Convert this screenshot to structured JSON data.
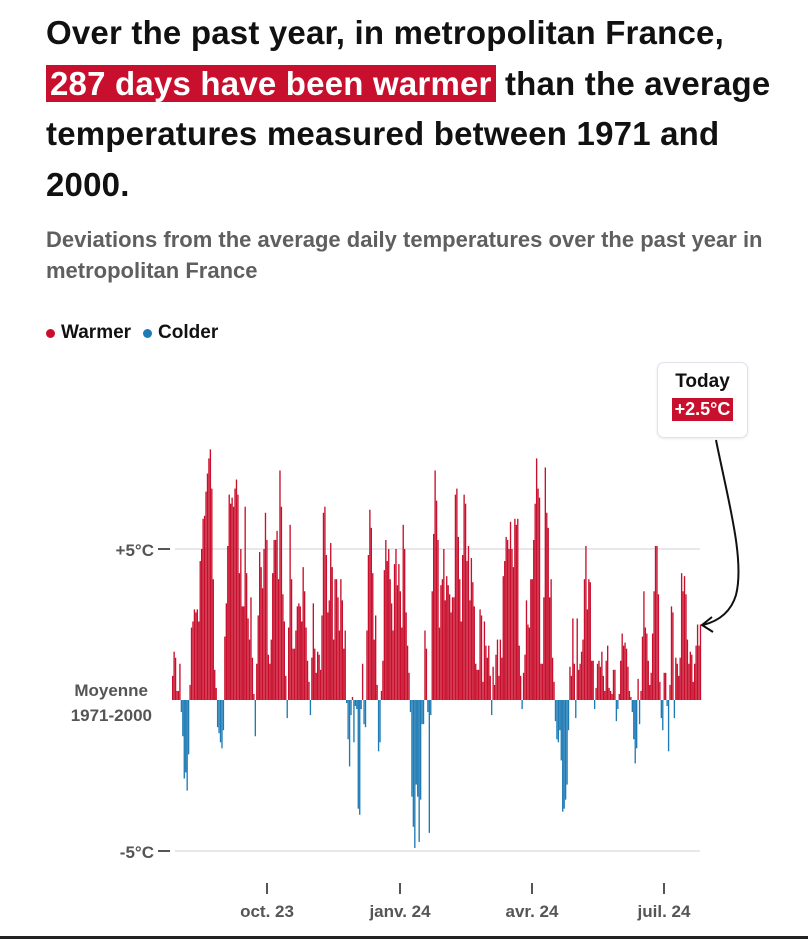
{
  "title": {
    "before": "Over the past year, in metropolitan France, ",
    "highlight": "287 days have been warmer",
    "after": " than the average temperatures measured between 1971 and 2000."
  },
  "subtitle": "Deviations from the average daily temperatures over the past year in metropolitan France",
  "legend": [
    {
      "label": "Warmer",
      "color": "#c8102e"
    },
    {
      "label": "Colder",
      "color": "#1f7bb5"
    }
  ],
  "callout": {
    "label": "Today",
    "value": "+2.5°C"
  },
  "chart_data": {
    "type": "bar",
    "title": "",
    "xlabel": "",
    "ylabel": "",
    "ylim": [
      -5.5,
      8.5
    ],
    "y_ticks": [
      {
        "value": 5,
        "label": "+5°C"
      },
      {
        "value": 0,
        "label_line1": "Moyenne",
        "label_line2": "1971-2000"
      },
      {
        "value": -5,
        "label": "-5°C"
      }
    ],
    "x_ticks": [
      "oct. 23",
      "janv. 24",
      "avr. 24",
      "juil. 24"
    ],
    "grid": true,
    "positive_color": "#c8102e",
    "negative_color": "#1f7bb5",
    "unit": "°C",
    "values": [
      0.8,
      1.6,
      1.4,
      0.3,
      0.3,
      1.2,
      -0.4,
      -1.2,
      -2.6,
      -2.4,
      -3.0,
      -1.8,
      0.5,
      2.4,
      2.6,
      3.0,
      2.9,
      3.0,
      2.6,
      4.6,
      5.0,
      6.0,
      6.1,
      6.9,
      7.5,
      8.0,
      8.3,
      7.0,
      4.0,
      1.0,
      0.4,
      -0.9,
      -1.1,
      -1.4,
      -1.6,
      -1.0,
      2.1,
      3.2,
      5.1,
      6.8,
      6.5,
      6.7,
      6.4,
      7.0,
      7.3,
      6.8,
      4.2,
      5.0,
      3.1,
      3.1,
      6.4,
      4.2,
      2.7,
      2.0,
      3.4,
      1.4,
      0.2,
      -1.2,
      1.2,
      2.8,
      4.9,
      4.4,
      3.7,
      5.0,
      6.2,
      5.3,
      1.5,
      1.2,
      2.0,
      4.2,
      5.3,
      5.3,
      5.6,
      4.0,
      7.6,
      6.4,
      3.5,
      2.6,
      0.8,
      -0.6,
      2.4,
      5.8,
      4.0,
      1.7,
      1.7,
      2.3,
      3.1,
      3.2,
      3.1,
      2.6,
      4.4,
      3.6,
      2.4,
      1.3,
      0.6,
      -0.5,
      1.4,
      3.2,
      1.7,
      0.9,
      1.6,
      1.5,
      1.0,
      2.8,
      6.2,
      6.4,
      4.8,
      2.9,
      3.3,
      5.2,
      4.4,
      2.0,
      4.0,
      4.0,
      3.4,
      2.3,
      4.0,
      3.3,
      1.7,
      2.3,
      -0.1,
      -1.3,
      -2.2,
      -0.5,
      0.1,
      -1.4,
      -0.2,
      -0.3,
      -3.6,
      -3.8,
      -0.3,
      1.2,
      -0.8,
      -0.9,
      2.3,
      4.8,
      6.3,
      5.7,
      4.2,
      2.0,
      2.8,
      0.5,
      -1.7,
      -1.4,
      0.3,
      1.3,
      4.3,
      5.3,
      4.6,
      5.0,
      4.0,
      3.2,
      2.3,
      4.5,
      5.0,
      3.8,
      4.5,
      3.6,
      2.4,
      5.8,
      5.0,
      2.9,
      1.8,
      0.9,
      -0.4,
      -3.2,
      -4.2,
      -4.9,
      -2.8,
      -3.2,
      -4.7,
      -3.3,
      -0.8,
      -0.8,
      2.3,
      1.7,
      -0.4,
      -4.4,
      -0.5,
      3.6,
      5.5,
      7.6,
      6.6,
      5.3,
      2.4,
      3.8,
      4.0,
      5.0,
      3.3,
      4.1,
      3.8,
      3.5,
      2.9,
      3.4,
      3.4,
      6.8,
      7.0,
      5.4,
      4.0,
      2.6,
      4.8,
      6.8,
      6.5,
      4.6,
      5.1,
      3.3,
      4.7,
      3.9,
      3.1,
      1.2,
      1.0,
      1.0,
      3.0,
      2.8,
      0.6,
      2.6,
      1.8,
      1.4,
      1.8,
      0.8,
      -0.5,
      1.1,
      0.5,
      1.5,
      2.0,
      0.8,
      2.0,
      1.4,
      4.1,
      4.6,
      5.4,
      5.3,
      5.0,
      5.9,
      5.0,
      4.4,
      6.0,
      5.8,
      6.0,
      1.8,
      0.8,
      -0.3,
      0.9,
      1.5,
      3.3,
      2.5,
      2.4,
      4.0,
      4.0,
      5.3,
      6.5,
      8.0,
      7.0,
      6.7,
      1.2,
      1.2,
      3.4,
      7.7,
      6.2,
      5.7,
      3.4,
      4.0,
      1.4,
      0.6,
      -0.7,
      -1.3,
      -1.4,
      -1.0,
      -2.0,
      -3.7,
      -3.6,
      -3.3,
      -2.8,
      -1.0,
      1.1,
      0.8,
      2.7,
      1.2,
      -0.6,
      2.7,
      1.0,
      1.2,
      1.6,
      2.0,
      4.0,
      5.1,
      3.0,
      4.0,
      3.9,
      1.3,
      1.3,
      -0.3,
      0.4,
      1.2,
      1.3,
      1.1,
      1.6,
      0.8,
      0.3,
      1.3,
      1.8,
      0.4,
      0.3,
      0.2,
      1.0,
      1.0,
      -0.7,
      -0.3,
      0.2,
      1.3,
      2.2,
      1.8,
      1.9,
      1.7,
      1.1,
      0.3,
      0.1,
      -0.4,
      -1.3,
      -2.1,
      -1.6,
      0.7,
      -0.8,
      0.3,
      2.1,
      3.6,
      2.4,
      2.2,
      1.3,
      0.5,
      0.9,
      2.2,
      3.6,
      5.1,
      5.1,
      3.5,
      0.6,
      -0.6,
      -1.0,
      0.9,
      0.9,
      -0.2,
      -1.7,
      0.5,
      3.1,
      2.9,
      -0.6,
      1.4,
      1.2,
      0.8,
      1.4,
      4.2,
      3.6,
      4.1,
      3.5,
      2.0,
      1.2,
      1.6,
      1.5,
      0.6,
      1.2,
      1.8,
      2.5,
      1.8,
      2.5
    ]
  }
}
